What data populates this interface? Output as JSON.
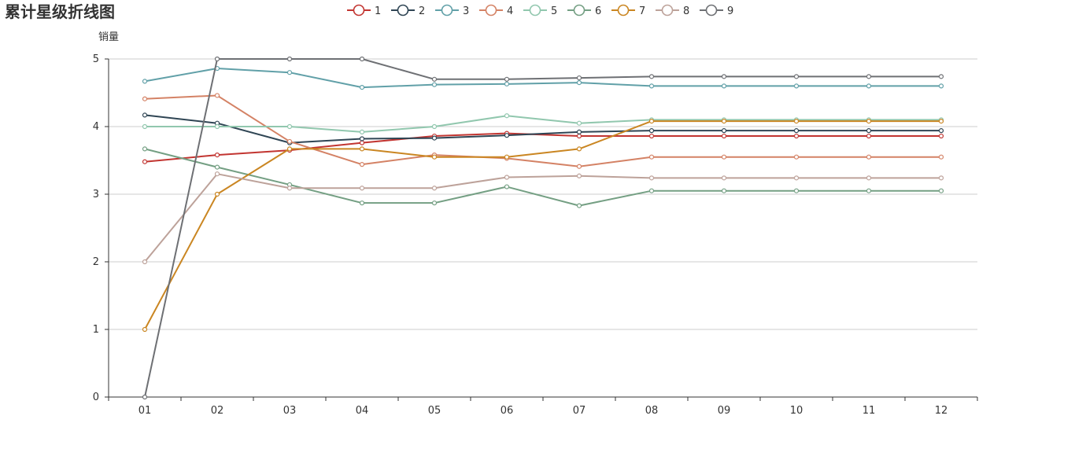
{
  "chart_data": {
    "type": "line",
    "title": "累计星级折线图",
    "ylabel": "销量",
    "xlabel": "",
    "categories": [
      "01",
      "02",
      "03",
      "04",
      "05",
      "06",
      "07",
      "08",
      "09",
      "10",
      "11",
      "12"
    ],
    "ylim": [
      0,
      5
    ],
    "yticks": [
      0,
      1,
      2,
      3,
      4,
      5
    ],
    "grid": "horizontal",
    "legend_position": "top-center",
    "series": [
      {
        "name": "1",
        "color": "#c23531",
        "values": [
          3.48,
          3.58,
          3.65,
          3.76,
          3.86,
          3.9,
          3.86,
          3.86,
          3.86,
          3.86,
          3.86,
          3.86
        ]
      },
      {
        "name": "2",
        "color": "#2f4554",
        "values": [
          4.17,
          4.05,
          3.76,
          3.82,
          3.83,
          3.87,
          3.92,
          3.94,
          3.94,
          3.94,
          3.94,
          3.94
        ]
      },
      {
        "name": "3",
        "color": "#61a0a8",
        "values": [
          4.67,
          4.86,
          4.8,
          4.58,
          4.62,
          4.63,
          4.65,
          4.6,
          4.6,
          4.6,
          4.6,
          4.6
        ]
      },
      {
        "name": "4",
        "color": "#d48265",
        "values": [
          4.41,
          4.46,
          3.78,
          3.44,
          3.58,
          3.53,
          3.41,
          3.55,
          3.55,
          3.55,
          3.55,
          3.55
        ]
      },
      {
        "name": "5",
        "color": "#91c7ae",
        "values": [
          4.0,
          4.0,
          4.0,
          3.92,
          4.0,
          4.16,
          4.05,
          4.1,
          4.1,
          4.1,
          4.1,
          4.1
        ]
      },
      {
        "name": "6",
        "color": "#749f83",
        "values": [
          3.67,
          3.4,
          3.14,
          2.87,
          2.87,
          3.11,
          2.83,
          3.05,
          3.05,
          3.05,
          3.05,
          3.05
        ]
      },
      {
        "name": "7",
        "color": "#ca8622",
        "values": [
          1.0,
          3.0,
          3.67,
          3.67,
          3.55,
          3.55,
          3.67,
          4.08,
          4.08,
          4.08,
          4.08,
          4.08
        ]
      },
      {
        "name": "8",
        "color": "#bda29a",
        "values": [
          2.0,
          3.3,
          3.09,
          3.09,
          3.09,
          3.25,
          3.27,
          3.24,
          3.24,
          3.24,
          3.24,
          3.24
        ]
      },
      {
        "name": "9",
        "color": "#6e7074",
        "values": [
          0.0,
          5.0,
          5.0,
          5.0,
          4.7,
          4.7,
          4.72,
          4.74,
          4.74,
          4.74,
          4.74,
          4.74
        ]
      }
    ]
  }
}
